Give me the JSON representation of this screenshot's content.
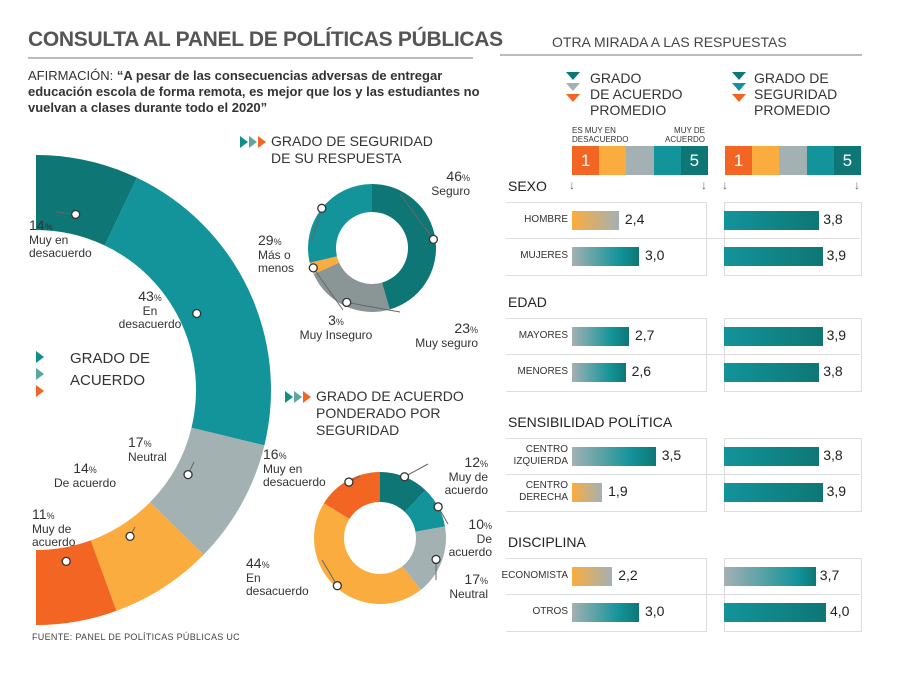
{
  "title": "CONSULTA AL PANEL DE POLÍTICAS PÚBLICAS",
  "statement_label": "AFIRMACIÓN:",
  "statement_text": "“A pesar de las consecuencias adversas de entregar educación escola de forma remota, es mejor que los y las estudiantes no vuelvan a clases durante todo el 2020”",
  "source": "FUENTE: PANEL DE POLÍTICAS PÚBLICAS UC",
  "right_title": "OTRA MIRADA A LAS RESPUESTAS",
  "colors": {
    "dark_teal": "#0e7775",
    "teal": "#12949a",
    "gray": "#a3b1b3",
    "light_orange": "#fbac3e",
    "orange": "#f26522"
  },
  "chart_data": [
    {
      "type": "pie",
      "id": "agreement",
      "title": "GRADO DE ACUERDO",
      "categories": [
        "Muy en desacuerdo",
        "En desacuerdo",
        "Neutral",
        "De acuerdo",
        "Muy de acuerdo"
      ],
      "values": [
        14,
        43,
        17,
        14,
        11
      ],
      "labels": [
        "14%",
        "43%",
        "17%",
        "14%",
        "11%"
      ],
      "label_lines": [
        [
          "Muy en",
          "desacuerdo"
        ],
        [
          "En",
          "desacuerdo"
        ],
        [
          "Neutral"
        ],
        [
          "De acuerdo"
        ],
        [
          "Muy de",
          "acuerdo"
        ]
      ],
      "colors": [
        "#0e7775",
        "#12949a",
        "#a3b1b3",
        "#fbac3e",
        "#f26522"
      ]
    },
    {
      "type": "pie",
      "id": "security",
      "title_lines": [
        "GRADO DE SEGURIDAD",
        "DE SU RESPUESTA"
      ],
      "categories": [
        "Seguro",
        "Muy seguro",
        "Muy Inseguro",
        "Más o menos"
      ],
      "values": [
        46,
        23,
        3,
        29
      ],
      "labels": [
        "46%",
        "23%",
        "3%",
        "29%"
      ],
      "label_lines": [
        [
          "Seguro"
        ],
        [
          "Muy seguro"
        ],
        [
          "Muy Inseguro"
        ],
        [
          "Más o",
          "menos"
        ]
      ],
      "colors": [
        "#0e7775",
        "#8a9596",
        "#fbac3e",
        "#12949a"
      ]
    },
    {
      "type": "pie",
      "id": "weighted",
      "title_lines": [
        "GRADO DE ACUERDO",
        "PONDERADO POR",
        "SEGURIDAD"
      ],
      "categories": [
        "Muy de acuerdo",
        "De acuerdo",
        "Neutral",
        "En desacuerdo",
        "Muy en desacuerdo"
      ],
      "values": [
        12,
        10,
        17,
        44,
        16
      ],
      "labels": [
        "12%",
        "10%",
        "17%",
        "44%",
        "16%"
      ],
      "label_lines": [
        [
          "Muy de",
          "acuerdo"
        ],
        [
          "De",
          "acuerdo"
        ],
        [
          "Neutral"
        ],
        [
          "En",
          "desacuerdo"
        ],
        [
          "Muy en",
          "desacuerdo"
        ]
      ],
      "colors": [
        "#0e7775",
        "#12949a",
        "#a3b1b3",
        "#fbac3e",
        "#f26522"
      ]
    },
    {
      "type": "bar",
      "id": "breakdown",
      "x_range": [
        1,
        5
      ],
      "scale_ticks": [
        "1",
        "5"
      ],
      "scale_labels": {
        "low": "ES MUY EN DESACUERDO",
        "high": "MUY DE ACUERDO"
      },
      "legend": {
        "agreement": [
          "GRADO",
          "DE ACUERDO",
          "PROMEDIO"
        ],
        "security": [
          "GRADO DE",
          "SEGURIDAD",
          "PROMEDIO"
        ]
      },
      "groups": [
        {
          "name": "SEXO",
          "rows": [
            {
              "label": [
                "HOMBRE"
              ],
              "agreement": 2.4,
              "agreement_label": "2,4",
              "security": 3.8,
              "security_label": "3,8"
            },
            {
              "label": [
                "MUJERES"
              ],
              "agreement": 3.0,
              "agreement_label": "3,0",
              "security": 3.9,
              "security_label": "3,9"
            }
          ]
        },
        {
          "name": "EDAD",
          "rows": [
            {
              "label": [
                "MAYORES"
              ],
              "agreement": 2.7,
              "agreement_label": "2,7",
              "security": 3.9,
              "security_label": "3,9"
            },
            {
              "label": [
                "MENORES"
              ],
              "agreement": 2.6,
              "agreement_label": "2,6",
              "security": 3.8,
              "security_label": "3,8"
            }
          ]
        },
        {
          "name": "SENSIBILIDAD POLÍTICA",
          "rows": [
            {
              "label": [
                "CENTRO",
                "IZQUIERDA"
              ],
              "agreement": 3.5,
              "agreement_label": "3,5",
              "security": 3.8,
              "security_label": "3,8"
            },
            {
              "label": [
                "CENTRO",
                "DERECHA"
              ],
              "agreement": 1.9,
              "agreement_label": "1,9",
              "security": 3.9,
              "security_label": "3,9"
            }
          ]
        },
        {
          "name": "DISCIPLINA",
          "rows": [
            {
              "label": [
                "ECONOMISTA"
              ],
              "agreement": 2.2,
              "agreement_label": "2,2",
              "security": 3.7,
              "security_label": "3,7"
            },
            {
              "label": [
                "OTROS"
              ],
              "agreement": 3.0,
              "agreement_label": "3,0",
              "security": 4.0,
              "security_label": "4,0"
            }
          ]
        }
      ]
    }
  ]
}
